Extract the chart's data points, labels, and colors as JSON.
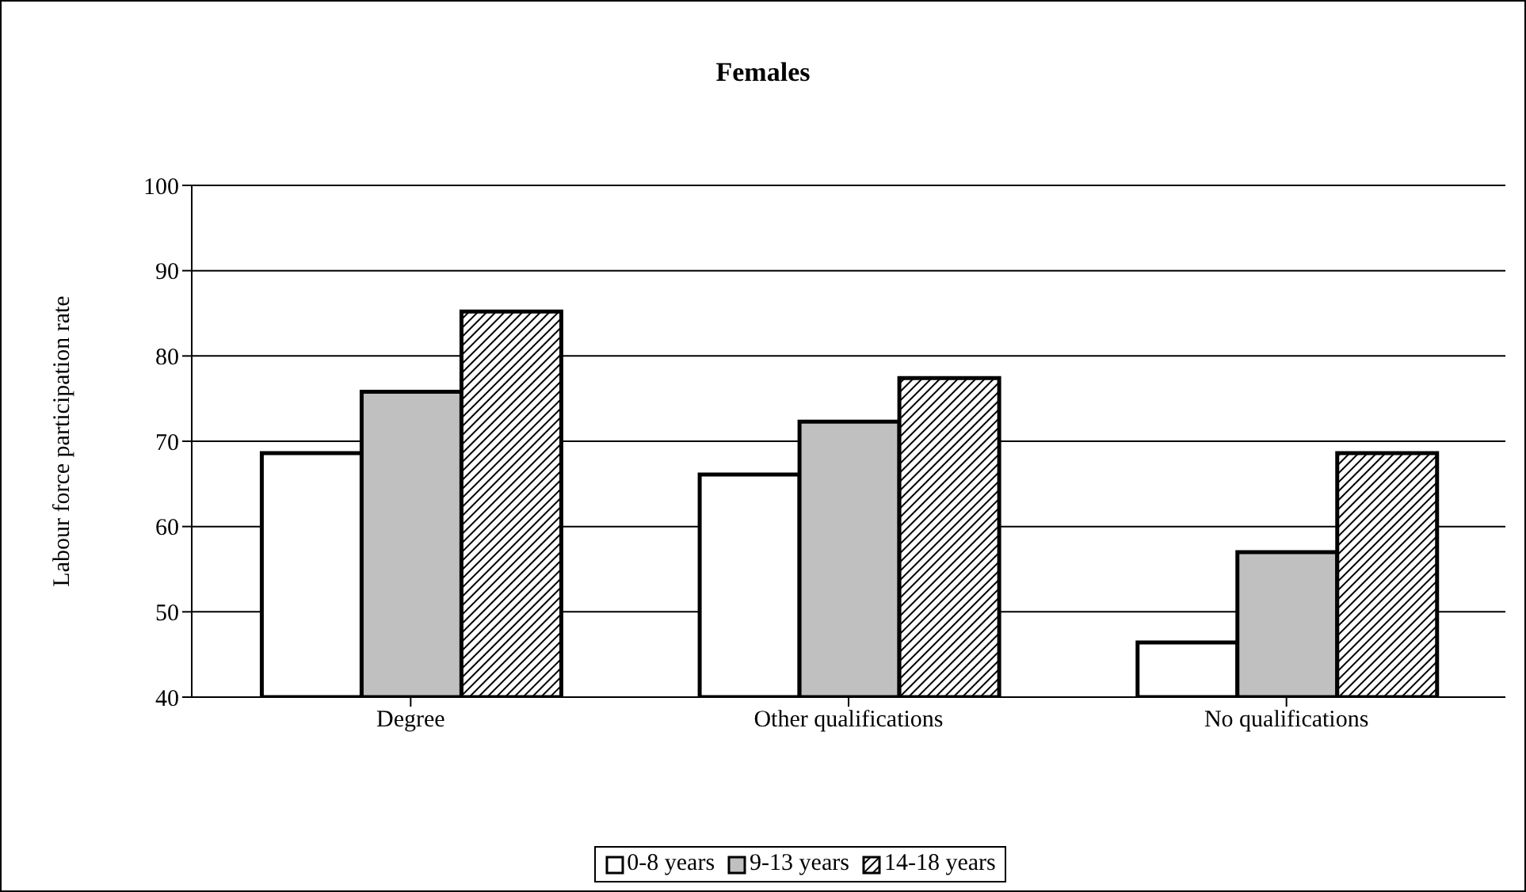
{
  "chart_data": {
    "type": "bar",
    "title": "Females",
    "ylabel": "Labour force participation rate",
    "categories": [
      "Degree",
      "Other qualifications",
      "No qualifications"
    ],
    "series": [
      {
        "name": "0-8 years",
        "color": "#ffffff",
        "values": [
          68.6,
          66.1,
          46.4
        ]
      },
      {
        "name": "9-13 years",
        "color": "#c0c0c0",
        "values": [
          75.8,
          72.3,
          57.0
        ]
      },
      {
        "name": "14-18 years",
        "color": "#000000",
        "values": [
          85.2,
          77.4,
          68.6
        ]
      }
    ],
    "ylim": [
      40,
      100
    ],
    "yticks": [
      40,
      50,
      60,
      70,
      80,
      90,
      100
    ],
    "grid": "y",
    "legend": "bottom"
  }
}
